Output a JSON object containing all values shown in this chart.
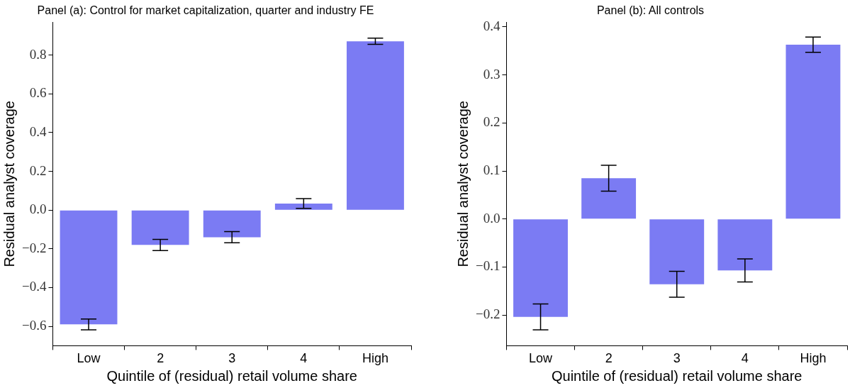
{
  "chart_data": [
    {
      "type": "bar",
      "title": "Panel (a): Control for market capitalization, quarter and industry FE",
      "xlabel": "Quintile of (residual) retail volume share",
      "ylabel": "Residual analyst coverage",
      "categories": [
        "Low",
        "2",
        "3",
        "4",
        "High"
      ],
      "values": [
        -0.59,
        -0.18,
        -0.14,
        0.034,
        0.871
      ],
      "errors": [
        0.028,
        0.029,
        0.029,
        0.025,
        0.016
      ],
      "color": "#7b7bf3",
      "ylim": [
        -0.7,
        0.97
      ],
      "yticks": [
        {
          "value": -0.6,
          "label": "−0.6"
        },
        {
          "value": -0.4,
          "label": "−0.4"
        },
        {
          "value": -0.2,
          "label": "−0.2"
        },
        {
          "value": 0,
          "label": "0.0"
        },
        {
          "value": 0.2,
          "label": "0.2"
        },
        {
          "value": 0.4,
          "label": "0.4"
        },
        {
          "value": 0.6,
          "label": "0.6"
        },
        {
          "value": 0.8,
          "label": "0.8"
        }
      ],
      "grid": false
    },
    {
      "type": "bar",
      "title": "Panel (b): All controls",
      "xlabel": "Quintile of (residual) retail volume share",
      "ylabel": "Residual analyst coverage",
      "categories": [
        "Low",
        "2",
        "3",
        "4",
        "High"
      ],
      "values": [
        -0.204,
        0.085,
        -0.136,
        -0.107,
        0.363
      ],
      "errors": [
        0.027,
        0.027,
        0.027,
        0.024,
        0.016
      ],
      "color": "#7b7bf3",
      "ylim": [
        -0.264,
        0.41
      ],
      "yticks": [
        {
          "value": -0.2,
          "label": "−0.2"
        },
        {
          "value": -0.1,
          "label": "−0.1"
        },
        {
          "value": 0,
          "label": "0.0"
        },
        {
          "value": 0.1,
          "label": "0.1"
        },
        {
          "value": 0.2,
          "label": "0.2"
        },
        {
          "value": 0.3,
          "label": "0.3"
        },
        {
          "value": 0.4,
          "label": "0.4"
        }
      ],
      "grid": false
    }
  ]
}
